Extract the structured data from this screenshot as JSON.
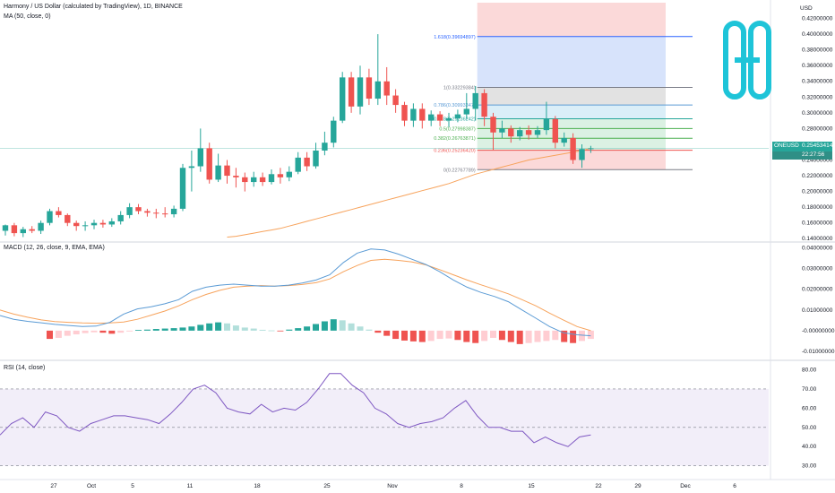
{
  "header": {
    "title": "Harmony / US Dollar (calculated by TradingView), 1D, BINANCE",
    "ma_label": "MA (50, close, 0)",
    "macd_label": "MACD (12, 26, close, 9, EMA, EMA)",
    "rsi_label": "RSI (14, close)",
    "currency": "USD"
  },
  "price_badge": {
    "symbol": "ONEUSD",
    "price": "0.25453414",
    "countdown": "22:27:56"
  },
  "colors": {
    "up": "#26a69a",
    "down": "#ef5350",
    "ma": "#f7a35c",
    "macd": "#5b9bd5",
    "signal": "#f7a35c",
    "rsi": "#7e57c2",
    "logo": "#1ec4d8",
    "fib_blue": "#2962ff"
  },
  "logo": {
    "icon": "harmony-logo-icon"
  },
  "chart_data": [
    {
      "type": "candlestick",
      "title": "Harmony / US Dollar (calculated by TradingView), 1D, BINANCE",
      "y_ticks": [
        "0.42000000",
        "0.40000000",
        "0.38000000",
        "0.36000000",
        "0.34000000",
        "0.32000000",
        "0.30000000",
        "0.28000000",
        "0.26000000",
        "0.24000000",
        "0.22000000",
        "0.20000000",
        "0.18000000",
        "0.16000000",
        "0.14000000"
      ],
      "x_ticks": [
        "27",
        "Oct",
        "5",
        "11",
        "18",
        "25",
        "Nov",
        "8",
        "15",
        "22",
        "29",
        "Dec",
        "6"
      ],
      "ylim": [
        0.138,
        0.44
      ],
      "candles": [
        [
          0.15,
          0.157,
          0.144,
          0.158
        ],
        [
          0.157,
          0.147,
          0.143,
          0.16
        ],
        [
          0.147,
          0.152,
          0.142,
          0.155
        ],
        [
          0.152,
          0.15,
          0.147,
          0.156
        ],
        [
          0.15,
          0.16,
          0.146,
          0.163
        ],
        [
          0.16,
          0.175,
          0.157,
          0.178
        ],
        [
          0.175,
          0.17,
          0.167,
          0.18
        ],
        [
          0.17,
          0.16,
          0.156,
          0.172
        ],
        [
          0.16,
          0.156,
          0.15,
          0.163
        ],
        [
          0.156,
          0.157,
          0.15,
          0.162
        ],
        [
          0.157,
          0.16,
          0.152,
          0.164
        ],
        [
          0.16,
          0.158,
          0.154,
          0.164
        ],
        [
          0.158,
          0.162,
          0.155,
          0.166
        ],
        [
          0.162,
          0.17,
          0.158,
          0.175
        ],
        [
          0.17,
          0.18,
          0.166,
          0.185
        ],
        [
          0.18,
          0.175,
          0.171,
          0.184
        ],
        [
          0.175,
          0.173,
          0.168,
          0.178
        ],
        [
          0.173,
          0.172,
          0.166,
          0.178
        ],
        [
          0.172,
          0.171,
          0.167,
          0.18
        ],
        [
          0.171,
          0.178,
          0.167,
          0.182
        ],
        [
          0.178,
          0.23,
          0.175,
          0.235
        ],
        [
          0.23,
          0.232,
          0.2,
          0.252
        ],
        [
          0.232,
          0.255,
          0.225,
          0.28
        ],
        [
          0.255,
          0.215,
          0.21,
          0.262
        ],
        [
          0.215,
          0.233,
          0.212,
          0.248
        ],
        [
          0.233,
          0.22,
          0.21,
          0.24
        ],
        [
          0.22,
          0.218,
          0.205,
          0.23
        ],
        [
          0.218,
          0.212,
          0.2,
          0.224
        ],
        [
          0.212,
          0.218,
          0.206,
          0.225
        ],
        [
          0.218,
          0.212,
          0.207,
          0.224
        ],
        [
          0.212,
          0.222,
          0.209,
          0.228
        ],
        [
          0.222,
          0.218,
          0.21,
          0.23
        ],
        [
          0.218,
          0.225,
          0.213,
          0.232
        ],
        [
          0.225,
          0.243,
          0.222,
          0.25
        ],
        [
          0.243,
          0.232,
          0.226,
          0.25
        ],
        [
          0.232,
          0.252,
          0.229,
          0.262
        ],
        [
          0.252,
          0.262,
          0.246,
          0.276
        ],
        [
          0.262,
          0.29,
          0.256,
          0.295
        ],
        [
          0.29,
          0.345,
          0.287,
          0.352
        ],
        [
          0.345,
          0.308,
          0.3,
          0.352
        ],
        [
          0.308,
          0.345,
          0.298,
          0.36
        ],
        [
          0.345,
          0.318,
          0.31,
          0.356
        ],
        [
          0.318,
          0.34,
          0.31,
          0.4
        ],
        [
          0.34,
          0.322,
          0.31,
          0.358
        ],
        [
          0.322,
          0.31,
          0.3,
          0.33
        ],
        [
          0.31,
          0.29,
          0.283,
          0.314
        ],
        [
          0.29,
          0.305,
          0.282,
          0.312
        ],
        [
          0.305,
          0.29,
          0.28,
          0.312
        ],
        [
          0.29,
          0.298,
          0.283,
          0.303
        ],
        [
          0.298,
          0.29,
          0.283,
          0.302
        ],
        [
          0.29,
          0.293,
          0.282,
          0.3
        ],
        [
          0.293,
          0.298,
          0.288,
          0.304
        ],
        [
          0.298,
          0.305,
          0.292,
          0.325
        ],
        [
          0.305,
          0.325,
          0.29,
          0.334
        ],
        [
          0.325,
          0.295,
          0.283,
          0.33
        ],
        [
          0.295,
          0.275,
          0.253,
          0.3
        ],
        [
          0.275,
          0.28,
          0.268,
          0.29
        ],
        [
          0.28,
          0.27,
          0.262,
          0.284
        ],
        [
          0.27,
          0.278,
          0.265,
          0.282
        ],
        [
          0.278,
          0.272,
          0.266,
          0.284
        ],
        [
          0.272,
          0.278,
          0.268,
          0.283
        ],
        [
          0.278,
          0.292,
          0.272,
          0.314
        ],
        [
          0.292,
          0.262,
          0.255,
          0.296
        ],
        [
          0.262,
          0.268,
          0.257,
          0.275
        ],
        [
          0.268,
          0.24,
          0.235,
          0.274
        ],
        [
          0.24,
          0.254,
          0.23,
          0.26
        ],
        [
          0.254,
          0.255,
          0.249,
          0.258
        ]
      ],
      "ma": [
        0.142,
        0.143,
        0.145,
        0.147,
        0.149,
        0.151,
        0.153,
        0.156,
        0.159,
        0.162,
        0.165,
        0.168,
        0.171,
        0.174,
        0.177,
        0.18,
        0.183,
        0.186,
        0.189,
        0.192,
        0.195,
        0.198,
        0.201,
        0.204,
        0.207,
        0.21,
        0.214,
        0.218,
        0.222,
        0.225,
        0.228,
        0.231,
        0.234,
        0.237,
        0.24,
        0.242,
        0.244,
        0.246,
        0.248,
        0.25,
        0.252,
        0.255
      ],
      "fib_levels": [
        {
          "label": "1.618(0.39694897)",
          "value": 0.39694897
        },
        {
          "label": "1(0.33229384)",
          "value": 0.33229384
        },
        {
          "label": "0.786(0.30993347)",
          "value": 0.30993347
        },
        {
          "label": "0.618(0.29236242)",
          "value": 0.29236242
        },
        {
          "label": "0.5(0.27998387)",
          "value": 0.27998387
        },
        {
          "label": "0.382(0.26763871)",
          "value": 0.26763871
        },
        {
          "label": "0.236(0.25236420)",
          "value": 0.2523642
        },
        {
          "label": "0(0.22767789)",
          "value": 0.22767789
        }
      ],
      "fib_top_value": 0.44,
      "fib_top_color": "#f8d4d4",
      "fib_bands": [
        {
          "from": 0.39694897,
          "to": 0.44,
          "color": "#fbd5d5"
        },
        {
          "from": 0.33229384,
          "to": 0.39694897,
          "color": "#d3e0fb"
        },
        {
          "from": 0.30993347,
          "to": 0.33229384,
          "color": "#dfdfdf"
        },
        {
          "from": 0.29236242,
          "to": 0.30993347,
          "color": "#d6ecf7"
        },
        {
          "from": 0.2523642,
          "to": 0.29236242,
          "color": "#d7efe0"
        },
        {
          "from": 0.22767789,
          "to": 0.2523642,
          "color": "#fbd5d5"
        }
      ],
      "fib_line_colors": [
        "#2962ff",
        "#787b86",
        "#5b9bd5",
        "#26a69a",
        "#4caf50",
        "#4caf50",
        "#ef5350",
        "#787b86"
      ],
      "current_price": 0.25453414
    },
    {
      "type": "macd",
      "title": "MACD (12, 26, close, 9, EMA, EMA)",
      "y_ticks": [
        "0.04000000",
        "0.03000000",
        "0.02000000",
        "0.01000000",
        "-0.00000000",
        "-0.01000000"
      ],
      "ylim": [
        -0.0135,
        0.042
      ],
      "macd": [
        0.0073,
        0.0055,
        0.0045,
        0.0038,
        0.003,
        0.0025,
        0.002,
        0.0022,
        0.004,
        0.008,
        0.0105,
        0.0115,
        0.013,
        0.015,
        0.019,
        0.021,
        0.022,
        0.0225,
        0.022,
        0.0215,
        0.0215,
        0.022,
        0.023,
        0.0245,
        0.027,
        0.033,
        0.0375,
        0.0395,
        0.039,
        0.037,
        0.0345,
        0.032,
        0.0285,
        0.0245,
        0.021,
        0.0185,
        0.0165,
        0.014,
        0.01,
        0.006,
        0.002,
        -0.001,
        -0.002,
        -0.0025
      ],
      "signal": [
        0.01,
        0.008,
        0.0065,
        0.0052,
        0.0044,
        0.004,
        0.0037,
        0.0036,
        0.0037,
        0.0042,
        0.0055,
        0.0075,
        0.0095,
        0.012,
        0.015,
        0.0175,
        0.0195,
        0.021,
        0.0215,
        0.0218,
        0.0215,
        0.0218,
        0.0223,
        0.0232,
        0.025,
        0.0285,
        0.0315,
        0.034,
        0.0345,
        0.034,
        0.0332,
        0.0318,
        0.0295,
        0.027,
        0.0245,
        0.0222,
        0.02,
        0.0178,
        0.015,
        0.012,
        0.0085,
        0.0052,
        0.002,
        0.0
      ],
      "histogram": [
        -0.004,
        -0.0035,
        -0.0025,
        -0.0018,
        -0.0012,
        -0.0008,
        -0.001,
        -0.0015,
        -0.001,
        -0.0004,
        0.0003,
        0.0005,
        0.0008,
        0.001,
        0.0012,
        0.0015,
        0.002,
        0.0028,
        0.0035,
        0.004,
        0.0035,
        0.0025,
        0.0015,
        0.001,
        0.0004,
        0.0001,
        -0.0001,
        0.0005,
        0.0012,
        0.002,
        0.0032,
        0.0045,
        0.0055,
        0.005,
        0.0035,
        0.002,
        0.0005,
        -0.001,
        -0.0025,
        -0.004,
        -0.0048,
        -0.0052,
        -0.0055,
        -0.005,
        -0.004,
        -0.0038,
        -0.0045,
        -0.0055,
        -0.006,
        -0.005,
        -0.0035,
        -0.0045,
        -0.0055,
        -0.0065,
        -0.006,
        -0.0055,
        -0.005,
        -0.0045,
        -0.0055,
        -0.006,
        -0.005,
        -0.004
      ]
    },
    {
      "type": "line",
      "title": "RSI (14, close)",
      "y_ticks": [
        "80.00",
        "70.00",
        "60.00",
        "50.00",
        "40.00",
        "30.00"
      ],
      "ylim": [
        27,
        84
      ],
      "band": [
        30,
        70
      ],
      "mid": 50,
      "values": [
        46,
        52,
        55,
        50,
        58,
        56,
        50,
        48,
        52,
        54,
        56,
        56,
        55,
        54,
        52,
        57,
        63,
        70,
        72,
        68,
        60,
        58,
        57,
        62,
        58,
        60,
        59,
        63,
        70,
        78,
        78,
        72,
        68,
        60,
        57,
        52,
        50,
        52,
        53,
        55,
        60,
        64,
        56,
        50,
        50,
        48,
        48,
        42,
        45,
        42,
        40,
        45,
        46
      ]
    }
  ]
}
